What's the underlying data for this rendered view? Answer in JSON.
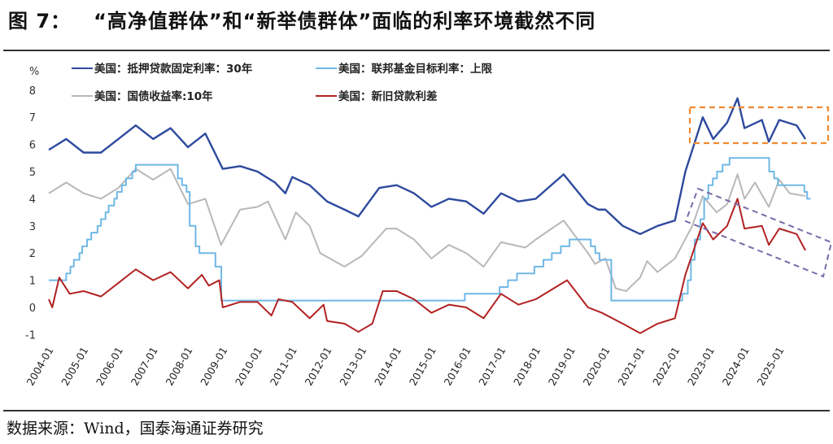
{
  "title": "图 7：   “高净值群体”和“新举债群体”面临的利率环境截然不同",
  "source": "数据来源：Wind，国泰海通证券研究",
  "chart_data": {
    "type": "line",
    "ylabel": "%",
    "ylim": [
      -1,
      8
    ],
    "yticks": [
      -1,
      0,
      1,
      2,
      3,
      4,
      5,
      6,
      7,
      8
    ],
    "xlim": [
      "2004-01",
      "2025-12"
    ],
    "xticks": [
      "2004-01",
      "2005-01",
      "2006-01",
      "2007-01",
      "2008-01",
      "2009-01",
      "2010-01",
      "2011-01",
      "2012-01",
      "2013-01",
      "2014-01",
      "2015-01",
      "2016-01",
      "2017-01",
      "2018-01",
      "2019-01",
      "2020-01",
      "2021-01",
      "2022-01",
      "2023-01",
      "2024-01",
      "2025-01"
    ],
    "grid": false,
    "legend_position": "top",
    "series": [
      {
        "name": "美国：抵押贷款固定利率：30年",
        "color": "#2e4a9e",
        "x": [
          2004.0,
          2004.5,
          2005.0,
          2005.5,
          2006.0,
          2006.5,
          2007.0,
          2007.5,
          2008.0,
          2008.5,
          2009.0,
          2009.5,
          2010.0,
          2010.5,
          2010.8,
          2011.0,
          2011.5,
          2012.0,
          2012.5,
          2012.9,
          2013.5,
          2014.0,
          2014.5,
          2015.0,
          2015.5,
          2016.0,
          2016.5,
          2017.0,
          2017.5,
          2018.0,
          2018.8,
          2019.5,
          2019.8,
          2020.0,
          2020.5,
          2021.0,
          2021.5,
          2022.0,
          2022.3,
          2022.8,
          2023.1,
          2023.5,
          2023.8,
          2024.0,
          2024.5,
          2024.7,
          2025.0,
          2025.5,
          2025.75
        ],
        "y": [
          5.8,
          6.2,
          5.7,
          5.7,
          6.2,
          6.7,
          6.2,
          6.6,
          5.9,
          6.4,
          5.1,
          5.2,
          5.0,
          4.6,
          4.2,
          4.8,
          4.5,
          3.9,
          3.6,
          3.35,
          4.4,
          4.5,
          4.2,
          3.7,
          4.0,
          3.9,
          3.45,
          4.2,
          3.9,
          4.0,
          4.9,
          3.8,
          3.6,
          3.6,
          3.0,
          2.7,
          3.0,
          3.2,
          5.0,
          7.0,
          6.2,
          6.8,
          7.7,
          6.6,
          6.9,
          6.1,
          6.9,
          6.7,
          6.2
        ]
      },
      {
        "name": "美国：联邦基金目标利率：上限",
        "color": "#6fb8e6",
        "step": true,
        "x": [
          2004.0,
          2004.5,
          2004.62,
          2004.72,
          2004.88,
          2004.96,
          2005.1,
          2005.22,
          2005.4,
          2005.5,
          2005.63,
          2005.72,
          2005.88,
          2005.96,
          2006.1,
          2006.22,
          2006.4,
          2006.5,
          2007.71,
          2007.83,
          2007.96,
          2008.05,
          2008.22,
          2008.33,
          2008.79,
          2008.96,
          2015.96,
          2016.96,
          2017.2,
          2017.46,
          2017.96,
          2018.22,
          2018.46,
          2018.72,
          2018.97,
          2019.58,
          2019.71,
          2019.83,
          2020.17,
          2022.21,
          2022.37,
          2022.46,
          2022.57,
          2022.73,
          2022.84,
          2022.96,
          2023.09,
          2023.21,
          2023.37,
          2023.57,
          2024.71,
          2024.85,
          2024.96,
          2025.72,
          2025.8,
          2025.9
        ],
        "y": [
          1.0,
          1.25,
          1.5,
          1.75,
          2.0,
          2.25,
          2.5,
          2.75,
          3.0,
          3.25,
          3.5,
          3.75,
          4.0,
          4.25,
          4.5,
          4.75,
          5.0,
          5.25,
          4.75,
          4.5,
          4.25,
          3.0,
          2.25,
          2.0,
          1.5,
          0.25,
          0.5,
          0.75,
          1.0,
          1.25,
          1.5,
          1.75,
          2.0,
          2.25,
          2.5,
          2.25,
          2.0,
          1.75,
          0.25,
          0.5,
          1.0,
          1.75,
          2.5,
          3.25,
          4.0,
          4.5,
          4.75,
          5.0,
          5.25,
          5.5,
          5.0,
          4.75,
          4.5,
          4.25,
          4.0,
          4.0
        ]
      },
      {
        "name": "美国：国债收益率:10年",
        "color": "#b8b8b8",
        "x": [
          2004.0,
          2004.5,
          2005.0,
          2005.5,
          2006.0,
          2006.5,
          2007.0,
          2007.5,
          2008.0,
          2008.5,
          2008.95,
          2009.5,
          2010.0,
          2010.3,
          2010.8,
          2011.1,
          2011.5,
          2011.8,
          2012.5,
          2013.0,
          2013.7,
          2014.0,
          2014.5,
          2015.0,
          2015.5,
          2016.0,
          2016.5,
          2017.0,
          2017.7,
          2018.0,
          2018.8,
          2019.5,
          2019.7,
          2020.0,
          2020.3,
          2020.6,
          2021.0,
          2021.2,
          2021.5,
          2022.0,
          2022.5,
          2022.8,
          2023.2,
          2023.5,
          2023.8,
          2024.0,
          2024.3,
          2024.7,
          2025.0,
          2025.3,
          2025.75
        ],
        "y": [
          4.2,
          4.6,
          4.2,
          4.0,
          4.4,
          5.1,
          4.7,
          5.1,
          3.8,
          4.0,
          2.3,
          3.6,
          3.7,
          3.9,
          2.5,
          3.5,
          3.0,
          2.0,
          1.5,
          1.9,
          2.9,
          2.9,
          2.5,
          1.8,
          2.3,
          2.0,
          1.5,
          2.4,
          2.2,
          2.5,
          3.2,
          2.0,
          1.6,
          1.8,
          0.7,
          0.6,
          1.1,
          1.7,
          1.3,
          1.8,
          3.0,
          4.1,
          3.5,
          3.8,
          4.9,
          4.0,
          4.6,
          3.7,
          4.7,
          4.2,
          4.1
        ]
      },
      {
        "name": "美国：新旧贷款利差",
        "color": "#b22222",
        "x": [
          2004.0,
          2004.1,
          2004.3,
          2004.6,
          2005.0,
          2005.5,
          2006.0,
          2006.5,
          2007.0,
          2007.5,
          2008.0,
          2008.4,
          2008.6,
          2008.9,
          2009.0,
          2009.5,
          2010.0,
          2010.4,
          2010.6,
          2011.0,
          2011.5,
          2011.9,
          2012.0,
          2012.5,
          2012.9,
          2013.3,
          2013.6,
          2014.0,
          2014.5,
          2015.0,
          2015.5,
          2016.0,
          2016.5,
          2017.0,
          2017.5,
          2018.0,
          2018.9,
          2019.5,
          2019.9,
          2020.5,
          2021.0,
          2021.5,
          2022.0,
          2022.3,
          2022.8,
          2023.1,
          2023.5,
          2023.8,
          2024.0,
          2024.5,
          2024.7,
          2025.0,
          2025.5,
          2025.75
        ],
        "y": [
          0.3,
          0.0,
          1.1,
          0.5,
          0.6,
          0.4,
          0.9,
          1.4,
          1.0,
          1.3,
          0.7,
          1.2,
          0.8,
          1.0,
          0.0,
          0.2,
          0.2,
          -0.3,
          0.3,
          0.2,
          -0.4,
          0.1,
          -0.5,
          -0.6,
          -0.9,
          -0.6,
          0.6,
          0.6,
          0.3,
          -0.2,
          0.1,
          0.0,
          -0.4,
          0.5,
          0.1,
          0.3,
          1.0,
          0.0,
          -0.2,
          -0.6,
          -0.95,
          -0.6,
          -0.4,
          1.2,
          3.1,
          2.5,
          3.0,
          4.0,
          2.9,
          3.0,
          2.3,
          2.9,
          2.7,
          2.1
        ]
      }
    ]
  }
}
